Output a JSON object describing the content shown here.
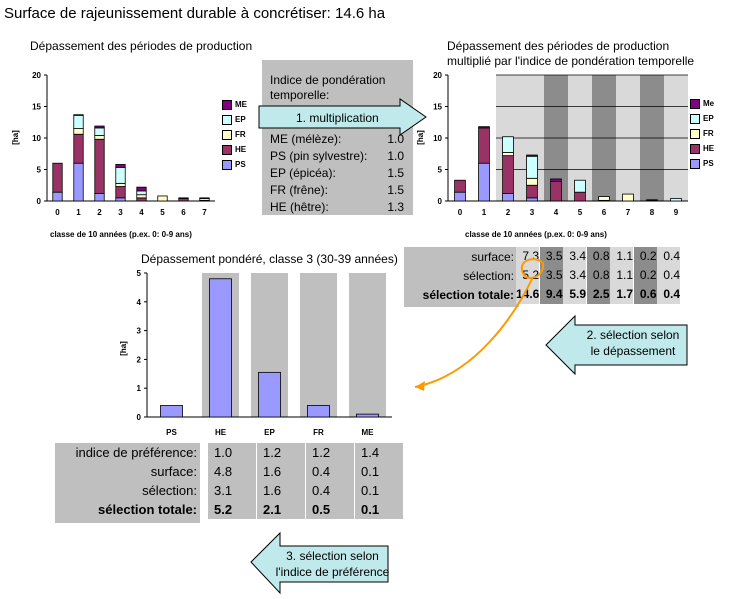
{
  "title": "Surface de rajeunissement durable à concrétiser: 14.6 ha",
  "colors": {
    "ME": "#800080",
    "EP": "#ccffff",
    "FR": "#ffffcc",
    "HE": "#993366",
    "PS": "#9999ff",
    "HE2": "#993366",
    "gray": "#bfbfbf",
    "dark": "#8c8c8c",
    "accent": "#ff9900"
  },
  "chart1": {
    "title": "Dépassement des périodes de production",
    "ylabel": "[ha]",
    "xlabel": "classe de 10 années (p.ex. 0: 0-9 ans)",
    "legend": [
      "ME",
      "EP",
      "FR",
      "HE",
      "PS"
    ]
  },
  "chart2": {
    "title_line1": "Dépassement des périodes de production",
    "title_line2": "multiplié par l'indice de pondération temporelle",
    "ylabel": "[ha]",
    "xlabel": "classe de 10 années (p.ex. 0: 0-9 ans)",
    "legend": [
      "Me",
      "EP",
      "FR",
      "HE",
      "PS"
    ]
  },
  "chart3": {
    "title": "Dépassement pondéré, classe 3 (30-39 années)",
    "ylabel": "[ha]"
  },
  "weights": {
    "title_line1": "Indice de pondération",
    "title_line2": "temporelle:",
    "rows": [
      {
        "label": "ME (mélèze):",
        "value": "1.0"
      },
      {
        "label": "PS (pin sylvestre):",
        "value": "1.0"
      },
      {
        "label": "EP (épicéa):",
        "value": "1.5"
      },
      {
        "label": "FR (frêne):",
        "value": "1.5"
      },
      {
        "label": "HE (hêtre):",
        "value": "1.3"
      }
    ]
  },
  "arrows": {
    "a1": "1. multiplication",
    "a2_line1": "2. sélection selon",
    "a2_line2": "le dépassement",
    "a3_line1": "3. sélection selon",
    "a3_line2": "l'indice de préférence"
  },
  "table_classes": {
    "rows": [
      {
        "label": "surface:",
        "values": [
          "7.3",
          "3.5",
          "3.4",
          "0.8",
          "1.1",
          "0.2",
          "0.4"
        ],
        "bold": false
      },
      {
        "label": "sélection:",
        "values": [
          "5.2",
          "3.5",
          "3.4",
          "0.8",
          "1.1",
          "0.2",
          "0.4"
        ],
        "bold": false
      },
      {
        "label": "sélection totale:",
        "values": [
          "14.6",
          "9.4",
          "5.9",
          "2.5",
          "1.7",
          "0.6",
          "0.4"
        ],
        "bold": true
      }
    ]
  },
  "table_species": {
    "rows": [
      {
        "label": "indice de préférence:",
        "values": [
          "1.0",
          "1.2",
          "1.2",
          "1.4"
        ],
        "bold": false
      },
      {
        "label": "surface:",
        "values": [
          "4.8",
          "1.6",
          "0.4",
          "0.1"
        ],
        "bold": false
      },
      {
        "label": "sélection:",
        "values": [
          "3.1",
          "1.6",
          "0.4",
          "0.1"
        ],
        "bold": false
      },
      {
        "label": "sélection totale:",
        "values": [
          "5.2",
          "2.1",
          "0.5",
          "0.1"
        ],
        "bold": true
      }
    ]
  },
  "chart_data": [
    {
      "type": "bar",
      "title": "Dépassement des périodes de production",
      "xlabel": "classe de 10 années (p.ex. 0: 0-9 ans)",
      "ylabel": "[ha]",
      "stacked": true,
      "ylim": [
        0,
        20
      ],
      "yticks": [
        "0",
        "5",
        "10",
        "15",
        "20"
      ],
      "categories": [
        "0",
        "1",
        "2",
        "3",
        "4",
        "5",
        "6",
        "7"
      ],
      "series": [
        {
          "name": "PS",
          "color": "#9999ff",
          "values": [
            1.4,
            6.0,
            1.2,
            0.5,
            0.0,
            0.0,
            0.0,
            0.0
          ]
        },
        {
          "name": "HE",
          "color": "#993366",
          "values": [
            4.6,
            4.6,
            8.6,
            1.8,
            0.5,
            0.0,
            0.4,
            0.0
          ]
        },
        {
          "name": "FR",
          "color": "#ffffcc",
          "values": [
            0.0,
            0.9,
            0.6,
            0.5,
            0.5,
            0.8,
            0.0,
            0.1
          ]
        },
        {
          "name": "EP",
          "color": "#ccffff",
          "values": [
            0.0,
            2.1,
            1.2,
            2.5,
            0.6,
            0.0,
            0.0,
            0.3
          ]
        },
        {
          "name": "ME",
          "color": "#800080",
          "values": [
            0.0,
            0.1,
            0.3,
            0.5,
            0.6,
            0.0,
            0.1,
            0.1
          ]
        }
      ]
    },
    {
      "type": "bar",
      "title": "Dépassement des périodes de production multiplié par l'indice de pondération temporelle",
      "xlabel": "classe de 10 années (p.ex. 0: 0-9 ans)",
      "ylabel": "[ha]",
      "stacked": true,
      "ylim": [
        0,
        20
      ],
      "yticks": [
        "0",
        "5",
        "10",
        "15",
        "20"
      ],
      "categories": [
        "0",
        "1",
        "2",
        "3",
        "4",
        "5",
        "6",
        "7",
        "8",
        "9"
      ],
      "series": [
        {
          "name": "PS",
          "color": "#9999ff",
          "values": [
            1.4,
            6.0,
            1.2,
            0.5,
            0.0,
            0.0,
            0.0,
            0.0,
            0.0,
            0.0
          ]
        },
        {
          "name": "HE",
          "color": "#993366",
          "values": [
            1.9,
            5.6,
            6.0,
            2.0,
            3.1,
            1.4,
            0.1,
            0.0,
            0.1,
            0.0
          ]
        },
        {
          "name": "FR",
          "color": "#ffffcc",
          "values": [
            0.0,
            0.0,
            0.5,
            1.1,
            0.0,
            0.0,
            0.6,
            1.1,
            0.0,
            0.0
          ]
        },
        {
          "name": "EP",
          "color": "#ccffff",
          "values": [
            0.0,
            0.0,
            2.5,
            3.5,
            0.0,
            1.9,
            0.0,
            0.0,
            0.1,
            0.4
          ]
        },
        {
          "name": "Me",
          "color": "#800080",
          "values": [
            0.0,
            0.2,
            0.0,
            0.2,
            0.4,
            0.0,
            0.0,
            0.0,
            0.0,
            0.0
          ]
        }
      ]
    },
    {
      "type": "bar",
      "title": "Dépassement pondéré, classe 3 (30-39 années)",
      "ylabel": "[ha]",
      "ylim": [
        0,
        5
      ],
      "yticks": [
        "0",
        "1",
        "2",
        "3",
        "4",
        "5"
      ],
      "categories": [
        "PS",
        "HE",
        "EP",
        "FR",
        "ME"
      ],
      "values": [
        0.4,
        4.8,
        1.55,
        0.4,
        0.1
      ]
    }
  ]
}
